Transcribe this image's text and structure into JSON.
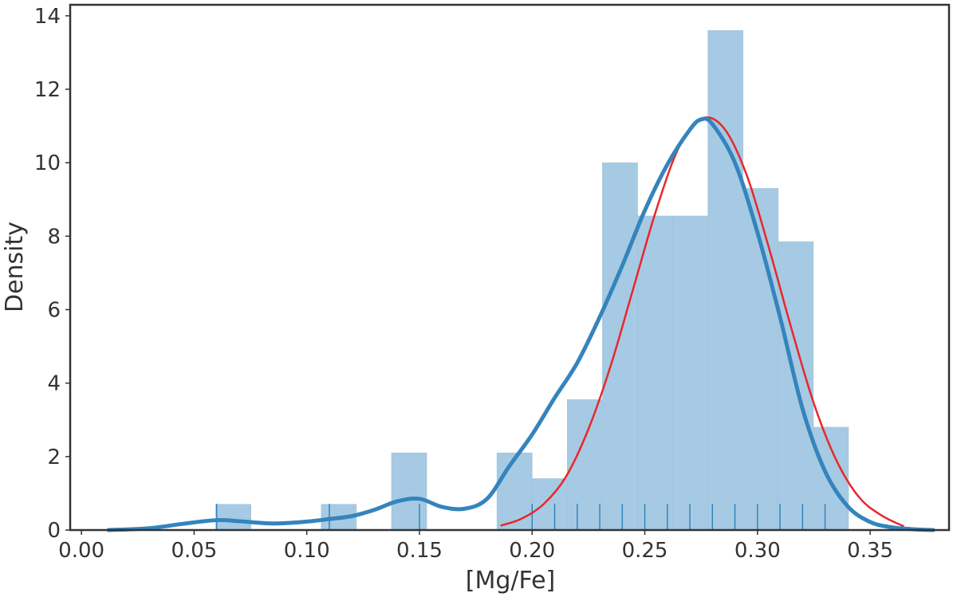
{
  "chart_data": {
    "type": "bar",
    "xlabel": "[Mg/Fe]",
    "ylabel": "Density",
    "xlim": [
      -0.005,
      0.385
    ],
    "ylim": [
      0,
      14.3
    ],
    "grid": false,
    "x_ticks": [
      "0.00",
      "0.05",
      "0.10",
      "0.15",
      "0.20",
      "0.25",
      "0.30",
      "0.35"
    ],
    "y_ticks": [
      "0",
      "2",
      "4",
      "6",
      "8",
      "10",
      "12",
      "14"
    ],
    "histogram": {
      "bin_width": 0.0156,
      "bins": [
        {
          "x0": 0.0596,
          "x1": 0.0752,
          "density": 0.7
        },
        {
          "x0": 0.1064,
          "x1": 0.122,
          "density": 0.7
        },
        {
          "x0": 0.1376,
          "x1": 0.1532,
          "density": 2.1
        },
        {
          "x0": 0.1844,
          "x1": 0.2,
          "density": 2.1
        },
        {
          "x0": 0.2,
          "x1": 0.2156,
          "density": 1.4
        },
        {
          "x0": 0.2156,
          "x1": 0.2312,
          "density": 3.55
        },
        {
          "x0": 0.2312,
          "x1": 0.2468,
          "density": 10.0
        },
        {
          "x0": 0.2468,
          "x1": 0.2624,
          "density": 8.55
        },
        {
          "x0": 0.2624,
          "x1": 0.278,
          "density": 8.55
        },
        {
          "x0": 0.278,
          "x1": 0.2936,
          "density": 13.6
        },
        {
          "x0": 0.2936,
          "x1": 0.3092,
          "density": 9.3
        },
        {
          "x0": 0.3092,
          "x1": 0.3248,
          "density": 7.85
        },
        {
          "x0": 0.3248,
          "x1": 0.3404,
          "density": 2.8
        }
      ]
    },
    "kde_curve": {
      "x": [
        0.012,
        0.03,
        0.045,
        0.06,
        0.07,
        0.085,
        0.1,
        0.11,
        0.12,
        0.13,
        0.14,
        0.15,
        0.16,
        0.17,
        0.18,
        0.19,
        0.2,
        0.21,
        0.22,
        0.23,
        0.24,
        0.25,
        0.26,
        0.27,
        0.275,
        0.28,
        0.29,
        0.3,
        0.31,
        0.32,
        0.33,
        0.34,
        0.35,
        0.36,
        0.37,
        0.378
      ],
      "y": [
        0.0,
        0.05,
        0.17,
        0.27,
        0.24,
        0.18,
        0.23,
        0.3,
        0.38,
        0.55,
        0.78,
        0.85,
        0.63,
        0.58,
        0.85,
        1.75,
        2.6,
        3.6,
        4.55,
        5.8,
        7.2,
        8.7,
        9.95,
        10.9,
        11.18,
        11.05,
        10.0,
        8.1,
        5.8,
        3.3,
        1.6,
        0.65,
        0.22,
        0.07,
        0.02,
        0.0
      ]
    },
    "normal_fit": {
      "x": [
        0.186,
        0.195,
        0.205,
        0.215,
        0.225,
        0.235,
        0.245,
        0.255,
        0.265,
        0.275,
        0.285,
        0.295,
        0.305,
        0.315,
        0.325,
        0.335,
        0.345,
        0.355,
        0.365
      ],
      "y": [
        0.12,
        0.3,
        0.7,
        1.45,
        2.75,
        4.5,
        6.6,
        8.7,
        10.4,
        11.2,
        10.95,
        9.7,
        7.7,
        5.5,
        3.45,
        1.9,
        0.9,
        0.4,
        0.1
      ]
    },
    "rug": [
      0.06,
      0.11,
      0.15,
      0.2,
      0.21,
      0.22,
      0.23,
      0.24,
      0.25,
      0.26,
      0.27,
      0.28,
      0.29,
      0.3,
      0.31,
      0.32,
      0.33
    ],
    "colors": {
      "bars": "#a6cae3",
      "kde": "#3484bd",
      "normal_fit": "#e8272b",
      "rug": "#3484bd",
      "axes": "#333333"
    }
  }
}
